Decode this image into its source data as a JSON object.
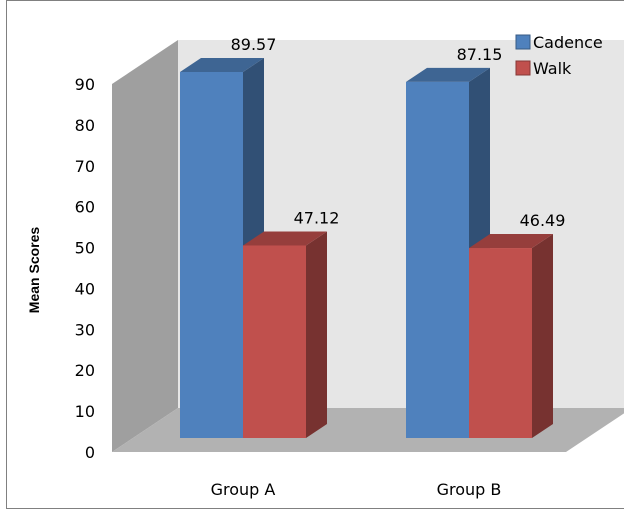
{
  "chart_data": {
    "type": "bar",
    "title": "",
    "xlabel": "",
    "ylabel": "Mean Scores",
    "ylim": [
      0,
      90
    ],
    "ytick_step": 10,
    "grid": false,
    "legend_position": "top-right",
    "three_d": true,
    "categories": [
      "Group A",
      "Group B"
    ],
    "series": [
      {
        "name": "Cadence",
        "color": "#4f81bd",
        "values": [
          89.57,
          87.15
        ]
      },
      {
        "name": "Walk",
        "color": "#c0504d",
        "values": [
          47.12,
          46.49
        ]
      }
    ],
    "data_labels": [
      [
        "89.57",
        "87.15"
      ],
      [
        "47.12",
        "46.49"
      ]
    ],
    "colors": {
      "back_wall": "#e6e6e6",
      "side_wall": "#9f9f9f",
      "floor": "#b2b2b2",
      "frame": "#808080"
    }
  }
}
